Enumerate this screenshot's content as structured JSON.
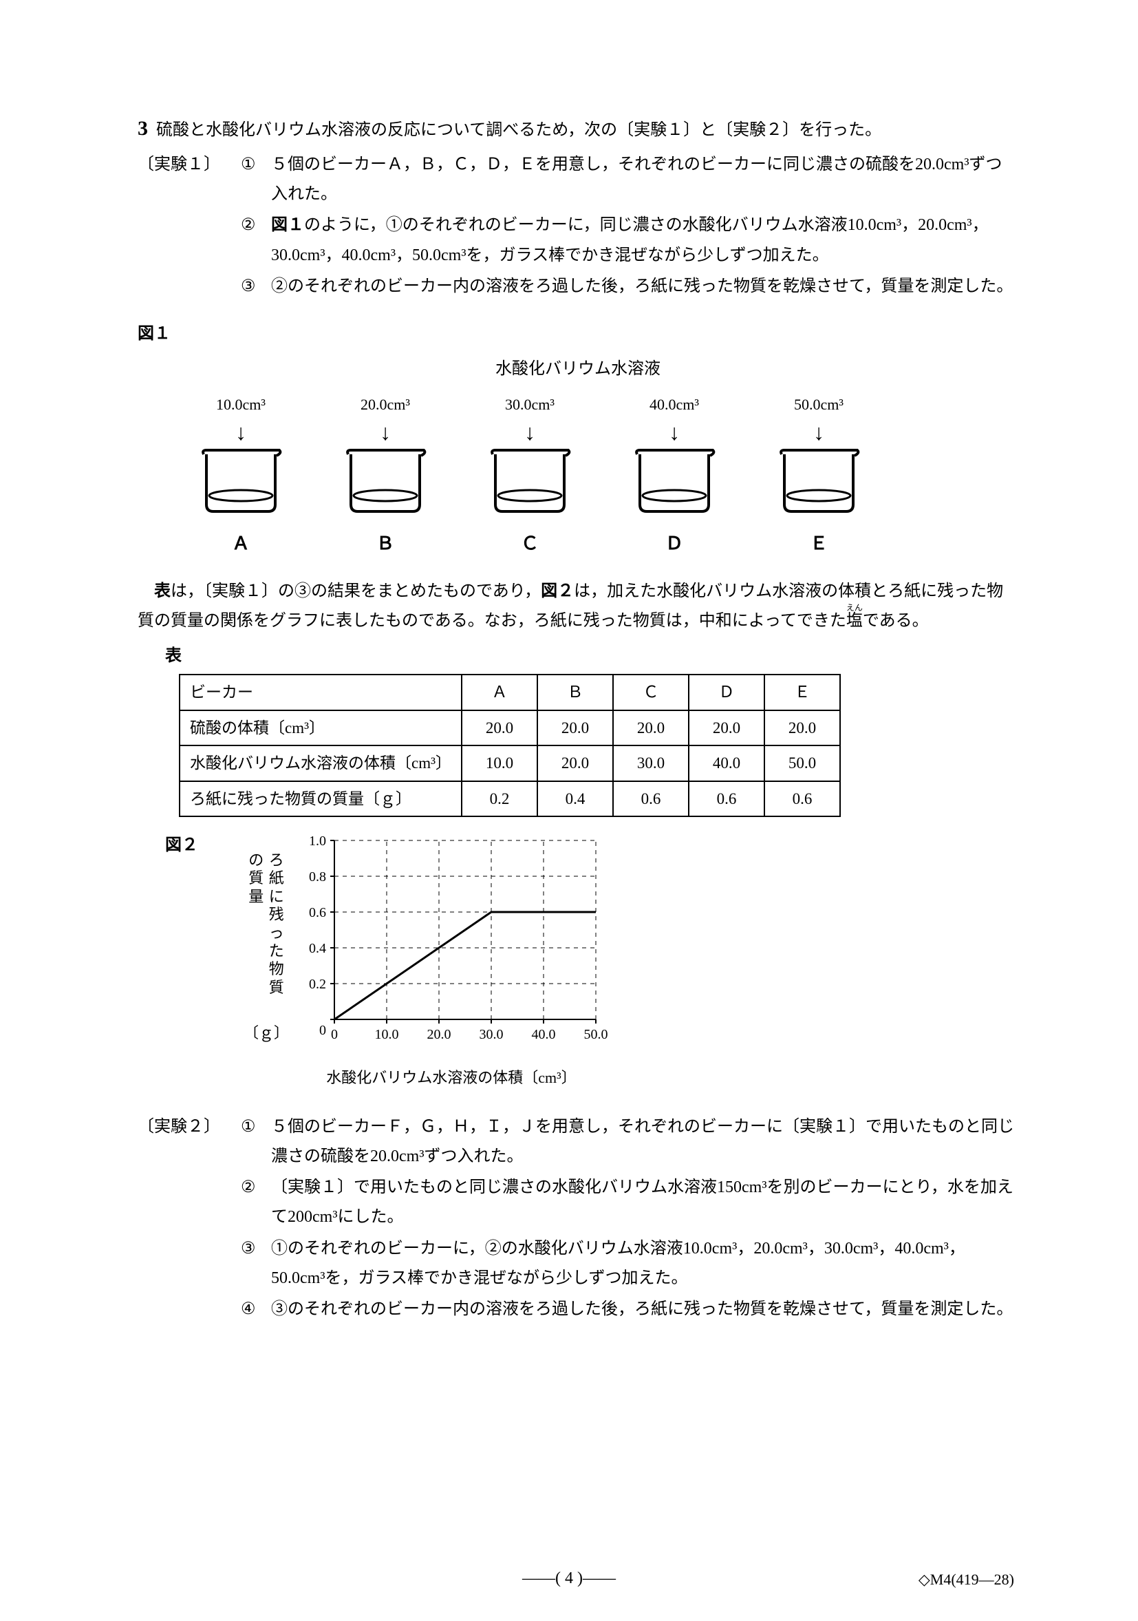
{
  "question_number": "3",
  "intro": "硫酸と水酸化バリウム水溶液の反応について調べるため，次の〔実験１〕と〔実験２〕を行った。",
  "exp1": {
    "label": "〔実験１〕",
    "items": {
      "n1": "①",
      "t1": "５個のビーカーＡ，Ｂ，Ｃ，Ｄ，Ｅを用意し，それぞれのビーカーに同じ濃さの硫酸を20.0cm³ずつ入れた。",
      "n2": "②",
      "t2": "図１のように，①のそれぞれのビーカーに，同じ濃さの水酸化バリウム水溶液10.0cm³，20.0cm³，30.0cm³，40.0cm³，50.0cm³を，ガラス棒でかき混ぜながら少しずつ加えた。",
      "n3": "③",
      "t3": "②のそれぞれのビーカー内の溶液をろ過した後，ろ紙に残った物質を乾燥させて，質量を測定した。"
    }
  },
  "fig1": {
    "label": "図１",
    "title": "水酸化バリウム水溶液",
    "beakers": [
      {
        "vol": "10.0cm³",
        "letter": "Ａ"
      },
      {
        "vol": "20.0cm³",
        "letter": "Ｂ"
      },
      {
        "vol": "30.0cm³",
        "letter": "Ｃ"
      },
      {
        "vol": "40.0cm³",
        "letter": "Ｄ"
      },
      {
        "vol": "50.0cm³",
        "letter": "Ｅ"
      }
    ]
  },
  "para1": "表は，〔実験１〕の③の結果をまとめたものであり，図２は，加えた水酸化バリウム水溶液の体積とろ紙に残った物質の質量の関係をグラフに表したものである。なお，ろ紙に残った物質は，中和によってできた塩である。",
  "table": {
    "label": "表",
    "columns": [
      "ビーカー",
      "Ａ",
      "Ｂ",
      "Ｃ",
      "Ｄ",
      "Ｅ"
    ],
    "rows": [
      {
        "head": "硫酸の体積〔cm³〕",
        "cells": [
          "20.0",
          "20.0",
          "20.0",
          "20.0",
          "20.0"
        ]
      },
      {
        "head": "水酸化バリウム水溶液の体積〔cm³〕",
        "cells": [
          "10.0",
          "20.0",
          "30.0",
          "40.0",
          "50.0"
        ]
      },
      {
        "head": "ろ紙に残った物質の質量〔ｇ〕",
        "cells": [
          "0.2",
          "0.4",
          "0.6",
          "0.6",
          "0.6"
        ]
      }
    ]
  },
  "fig2": {
    "label": "図２",
    "ylabel_1": "の質量",
    "ylabel_2": "ろ紙に残った物質",
    "yunit": "〔ｇ〕",
    "xlabel": "水酸化バリウム水溶液の体積〔cm³〕",
    "yticks": [
      "0",
      "0.2",
      "0.4",
      "0.6",
      "0.8",
      "1.0"
    ],
    "xticks": [
      "0",
      "10.0",
      "20.0",
      "30.0",
      "40.0",
      "50.0"
    ],
    "ylim": [
      0,
      1.0
    ],
    "xlim": [
      0,
      50
    ],
    "yticks_v": [
      0,
      0.2,
      0.4,
      0.6,
      0.8,
      1.0
    ],
    "xticks_v": [
      0,
      10,
      20,
      30,
      40,
      50
    ],
    "grid_color": "#000000",
    "line_color": "#000000",
    "line_width": 3,
    "background_color": "#ffffff",
    "data": [
      [
        0,
        0
      ],
      [
        10,
        0.2
      ],
      [
        20,
        0.4
      ],
      [
        30,
        0.6
      ],
      [
        40,
        0.6
      ],
      [
        50,
        0.6
      ]
    ]
  },
  "exp2": {
    "label": "〔実験２〕",
    "items": {
      "n1": "①",
      "t1": "５個のビーカーＦ，Ｇ，Ｈ，Ｉ，Ｊを用意し，それぞれのビーカーに〔実験１〕で用いたものと同じ濃さの硫酸を20.0cm³ずつ入れた。",
      "n2": "②",
      "t2": "〔実験１〕で用いたものと同じ濃さの水酸化バリウム水溶液150cm³を別のビーカーにとり，水を加えて200cm³にした。",
      "n3": "③",
      "t3": "①のそれぞれのビーカーに，②の水酸化バリウム水溶液10.0cm³，20.0cm³，30.0cm³，40.0cm³，50.0cm³を，ガラス棒でかき混ぜながら少しずつ加えた。",
      "n4": "④",
      "t4": "③のそれぞれのビーカー内の溶液をろ過した後，ろ紙に残った物質を乾燥させて，質量を測定した。"
    }
  },
  "footer_page": "——( 4 )——",
  "footer_right": "◇M4(419—28)"
}
